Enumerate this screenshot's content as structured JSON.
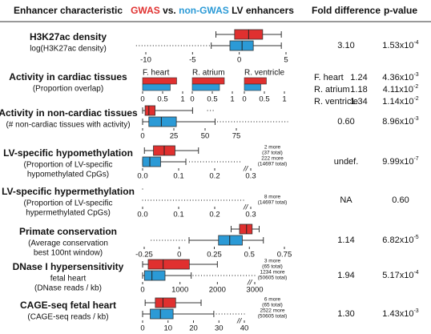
{
  "header": {
    "characteristic": "Enhancer characteristic",
    "gwas": "GWAS",
    "vs": " vs. ",
    "non_gwas": "non-GWAS",
    "lv": " LV enhancers",
    "fold": "Fold difference",
    "p": "p-value"
  },
  "series_colors": [
    "#e0302f",
    "#2b9ad6"
  ],
  "rows": [
    {
      "kind": "box",
      "title": "H3K27ac density",
      "subtitle": [
        "log(H3K27ac density)"
      ],
      "xlim": [
        -10,
        5
      ],
      "xticks": [
        -10,
        -5,
        0,
        5
      ],
      "series": [
        {
          "stats": [
            -2.5,
            -0.5,
            1,
            2.5,
            4.5
          ]
        },
        {
          "stats": [
            -3,
            -1,
            0.3,
            1.5,
            4.5
          ],
          "dots": [
            -11,
            -3
          ]
        }
      ],
      "fold": "3.10",
      "p": {
        "base": "1.53x10",
        "exp": "-4"
      }
    },
    {
      "kind": "bar",
      "title": "Activity in cardiac tissues",
      "subtitle": [
        "(Proportion overlap)"
      ],
      "panels": [
        {
          "label": "F. heart",
          "values": [
            0.85,
            0.69
          ],
          "xlim": [
            0,
            1
          ],
          "xticks": [
            0,
            0.5,
            1
          ]
        },
        {
          "label": "R. atrium",
          "values": [
            0.8,
            0.68
          ],
          "xlim": [
            0,
            1
          ],
          "xticks": [
            0,
            0.5,
            1
          ]
        },
        {
          "label": "R. ventricle",
          "values": [
            0.55,
            0.41
          ],
          "xlim": [
            0,
            1
          ],
          "xticks": [
            0,
            0.5,
            1
          ]
        }
      ],
      "folds": [
        "1.24",
        "1.18",
        "1.34"
      ],
      "ps": [
        {
          "base": "4.36x10",
          "exp": "-3"
        },
        {
          "base": "4.11x10",
          "exp": "-2"
        },
        {
          "base": "1.14x10",
          "exp": "-2"
        }
      ]
    },
    {
      "kind": "box",
      "title": "Activity in non-cardiac tissues",
      "subtitle": [
        "(# non-cardiac tissues with activity)"
      ],
      "xlim": [
        0,
        75
      ],
      "xticks": [
        0,
        25,
        50,
        75
      ],
      "series": [
        {
          "stats": [
            0,
            2,
            5,
            10,
            40
          ],
          "dots": [
            52,
            58
          ]
        },
        {
          "stats": [
            0,
            5,
            15,
            27,
            58
          ],
          "dots": [
            60,
            116
          ]
        }
      ],
      "fold": "0.60",
      "p": {
        "base": "8.96x10",
        "exp": "-3"
      }
    },
    {
      "kind": "box",
      "title": "LV-specific hypomethylation",
      "subtitle": [
        "(Proportion of LV-specific",
        "hypomethylated CpGs)"
      ],
      "xlim": [
        0,
        0.3
      ],
      "xticks": [
        {
          "value": 0,
          "label": "0.0"
        },
        0.1,
        0.2,
        0.3
      ],
      "axis_break": true,
      "series": [
        {
          "stats": [
            0.005,
            0.03,
            0.06,
            0.09,
            0.155
          ],
          "note": [
            "2 more",
            "(37 total)"
          ]
        },
        {
          "stats": [
            0,
            0,
            0.02,
            0.05,
            0.12
          ],
          "dots": [
            0.13,
            0.27
          ],
          "note": [
            "222 more",
            "(14697 total)"
          ]
        }
      ],
      "fold": "undef.",
      "p": {
        "base": "9.99x10",
        "exp": "-7"
      }
    },
    {
      "kind": "box",
      "title": "LV-specific hypermethylation",
      "subtitle": [
        "(Proportion of LV-specific",
        "hypermethylated CpGs)"
      ],
      "xlim": [
        0,
        0.3
      ],
      "xticks": [
        {
          "value": 0,
          "label": "0.0"
        },
        0.1,
        0.2,
        0.3
      ],
      "axis_break": true,
      "series": [
        {
          "dots": [
            0,
            0
          ]
        },
        {
          "dots": [
            0,
            0.28
          ],
          "note": [
            "8 more",
            "(14697 total)"
          ]
        }
      ],
      "fold": "NA",
      "p": {
        "base": "0.60"
      }
    },
    {
      "kind": "box",
      "title": "Primate conservation",
      "subtitle": [
        "(Average conservation",
        "best 100nt window)"
      ],
      "xlim": [
        -0.25,
        0.75
      ],
      "xticks": [
        -0.25,
        0,
        0.25,
        0.5,
        0.75
      ],
      "series": [
        {
          "stats": [
            0.37,
            0.43,
            0.48,
            0.52,
            0.57
          ]
        },
        {
          "stats": [
            0.07,
            0.28,
            0.36,
            0.45,
            0.6
          ],
          "dots": [
            -0.2,
            0.05
          ]
        }
      ],
      "fold": "1.14",
      "p": {
        "base": "6.82x10",
        "exp": "-5"
      }
    },
    {
      "kind": "box",
      "title": "DNase I hypersensitivity",
      "subtitle": [
        "fetal heart",
        "(DNase reads / kb)"
      ],
      "xlim": [
        0,
        3000
      ],
      "xticks": [
        0,
        1000,
        2000,
        3000
      ],
      "axis_break": true,
      "subtitle_bold_first": true,
      "series": [
        {
          "stats": [
            0,
            150,
            550,
            1250,
            2000
          ],
          "note": [
            "3 more",
            "(65 total)"
          ]
        },
        {
          "stats": [
            0,
            50,
            250,
            600,
            1300
          ],
          "dots": [
            1350,
            3000
          ],
          "note": [
            "1234 more",
            "(50605 total)"
          ]
        }
      ],
      "fold": "1.94",
      "p": {
        "base": "5.17x10",
        "exp": "-4"
      }
    },
    {
      "kind": "box",
      "title": "CAGE-seq fetal heart",
      "subtitle": [
        "(CAGE-seq reads / kb)"
      ],
      "xlim": [
        0,
        40
      ],
      "xticks": [
        0,
        10,
        20,
        30,
        40
      ],
      "axis_break": true,
      "series": [
        {
          "stats": [
            1,
            5,
            8,
            13,
            23
          ],
          "note": [
            "6 more",
            "(65 total)"
          ]
        },
        {
          "stats": [
            0,
            3,
            7,
            12,
            28
          ],
          "dots": [
            29,
            40
          ],
          "note": [
            "2522 more",
            "(50605 total)"
          ]
        }
      ],
      "fold": "1.30",
      "p": {
        "base": "1.43x10",
        "exp": "-3"
      }
    }
  ]
}
